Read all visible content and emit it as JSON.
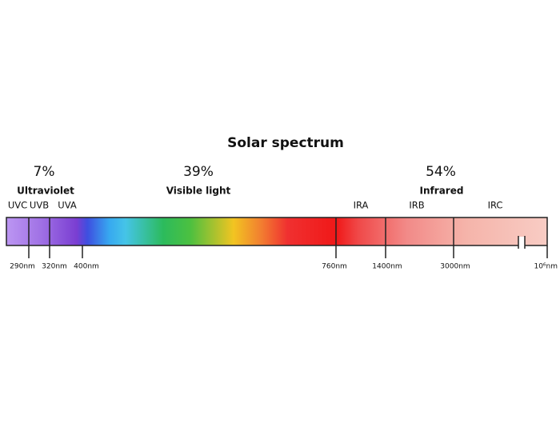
{
  "title": "Solar spectrum",
  "regions": [
    {
      "percent": "7%",
      "label": "Ultraviolet"
    },
    {
      "percent": "39%",
      "label": "Visible light"
    },
    {
      "percent": "54%",
      "label": "Infrared"
    }
  ],
  "bands": [
    "UVC",
    "UVB",
    "UVA",
    "IRA",
    "IRB",
    "IRC"
  ],
  "wavelengths": [
    "290nm",
    "320nm",
    "400nm",
    "760nm",
    "1400nm",
    "3000nm",
    "10⁶nm"
  ]
}
